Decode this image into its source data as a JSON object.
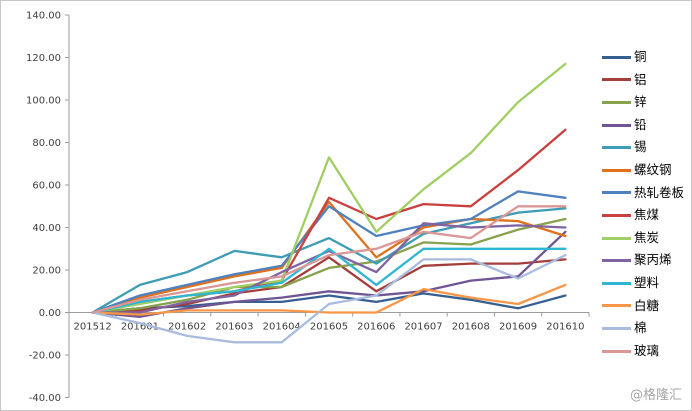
{
  "watermark": "@格隆汇",
  "axis_color": "#9c9c9c",
  "chart_data": {
    "type": "line",
    "title": "",
    "xlabel": "",
    "ylabel": "",
    "grid": false,
    "legend_position": "right",
    "x_categories": [
      "201512",
      "201601",
      "201602",
      "201603",
      "201604",
      "201605",
      "201606",
      "201607",
      "201608",
      "201609",
      "201610"
    ],
    "y_axis": {
      "min": -40,
      "max": 140,
      "step": 20,
      "tick_labels": [
        "140.00",
        "120.00",
        "100.00",
        "80.00",
        "60.00",
        "40.00",
        "20.00",
        "0.00",
        "-20.00",
        "-40.00"
      ]
    },
    "series": [
      {
        "name": "铜",
        "color": "#366092",
        "values": [
          0,
          2,
          3,
          5,
          5,
          8,
          5,
          9,
          6,
          2,
          8
        ]
      },
      {
        "name": "铝",
        "color": "#A43E3B",
        "values": [
          0,
          1,
          4,
          9,
          12,
          26,
          10,
          22,
          23,
          23,
          25
        ]
      },
      {
        "name": "锌",
        "color": "#87A14C",
        "values": [
          0,
          2,
          6,
          12,
          12,
          21,
          24,
          33,
          32,
          39,
          44
        ]
      },
      {
        "name": "铅",
        "color": "#705592",
        "values": [
          0,
          -2,
          2,
          5,
          7,
          10,
          8,
          10,
          15,
          17,
          38
        ]
      },
      {
        "name": "锡",
        "color": "#3E9CB4",
        "values": [
          0,
          13,
          19,
          29,
          26,
          35,
          23,
          37,
          42,
          47,
          49
        ]
      },
      {
        "name": "螺纹钢",
        "color": "#E0711C",
        "values": [
          0,
          7,
          12,
          17,
          21,
          52,
          26,
          40,
          44,
          43,
          36
        ]
      },
      {
        "name": "热轧卷板",
        "color": "#4F81BD",
        "values": [
          0,
          8,
          13,
          18,
          22,
          50,
          36,
          41,
          44,
          57,
          54
        ]
      },
      {
        "name": "焦煤",
        "color": "#C9403E",
        "values": [
          0,
          5,
          8,
          10,
          15,
          54,
          44,
          51,
          50,
          67,
          86
        ]
      },
      {
        "name": "焦炭",
        "color": "#9FCE63",
        "values": [
          0,
          4,
          8,
          12,
          15,
          73,
          38,
          58,
          75,
          99,
          117
        ]
      },
      {
        "name": "聚丙烯",
        "color": "#8064A2",
        "values": [
          0,
          0,
          5,
          8,
          19,
          29,
          19,
          42,
          40,
          41,
          40
        ]
      },
      {
        "name": "塑料",
        "color": "#2FB6D2",
        "values": [
          0,
          5,
          8,
          10,
          14,
          30,
          13,
          30,
          30,
          30,
          30
        ]
      },
      {
        "name": "白糖",
        "color": "#F79646",
        "values": [
          0,
          -1,
          1,
          1,
          1,
          0,
          0,
          11,
          7,
          4,
          13
        ]
      },
      {
        "name": "棉",
        "color": "#A9BCDE",
        "values": [
          0,
          -5,
          -11,
          -14,
          -14,
          4,
          8,
          25,
          25,
          16,
          27
        ]
      },
      {
        "name": "玻璃",
        "color": "#D99795",
        "values": [
          0,
          6,
          10,
          14,
          17,
          27,
          30,
          38,
          35,
          50,
          50
        ]
      }
    ]
  }
}
